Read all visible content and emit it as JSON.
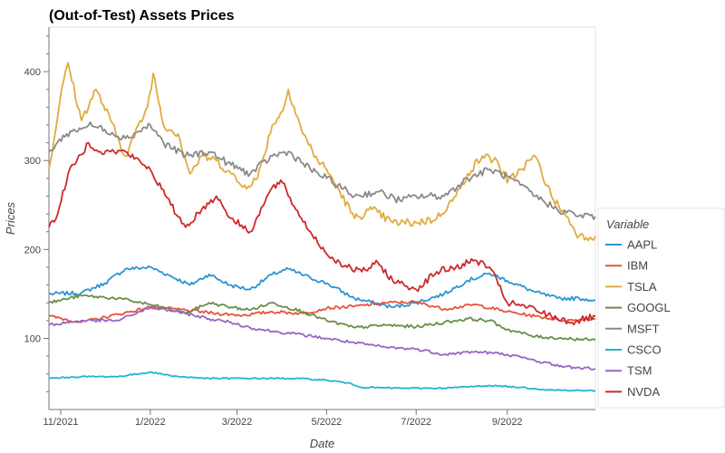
{
  "chart_data": {
    "type": "line",
    "title": "(Out-of-Test) Assets Prices",
    "xlabel": "Date",
    "ylabel": "Prices",
    "x_range": [
      "2021-10-24",
      "2022-10-31"
    ],
    "ylim": [
      20,
      450
    ],
    "y_ticks": [
      100,
      200,
      300,
      400
    ],
    "x_ticks": [
      {
        "date": "2021-11-01",
        "label": "11/2021"
      },
      {
        "date": "2022-01-01",
        "label": "1/2022"
      },
      {
        "date": "2022-03-01",
        "label": "3/2022"
      },
      {
        "date": "2022-05-01",
        "label": "5/2022"
      },
      {
        "date": "2022-07-01",
        "label": "7/2022"
      },
      {
        "date": "2022-09-01",
        "label": "9/2022"
      }
    ],
    "legend": {
      "title": "Variable",
      "position": "right"
    },
    "series": [
      {
        "name": "AAPL",
        "color": "#2b94d4",
        "points": [
          [
            "2021-10-24",
            150
          ],
          [
            "2021-11-15",
            151
          ],
          [
            "2021-12-01",
            162
          ],
          [
            "2021-12-15",
            178
          ],
          [
            "2022-01-01",
            180
          ],
          [
            "2022-01-15",
            170
          ],
          [
            "2022-01-28",
            160
          ],
          [
            "2022-02-10",
            172
          ],
          [
            "2022-02-24",
            160
          ],
          [
            "2022-03-10",
            155
          ],
          [
            "2022-03-25",
            172
          ],
          [
            "2022-04-05",
            178
          ],
          [
            "2022-04-20",
            168
          ],
          [
            "2022-05-01",
            162
          ],
          [
            "2022-05-20",
            145
          ],
          [
            "2022-06-15",
            135
          ],
          [
            "2022-07-01",
            140
          ],
          [
            "2022-07-20",
            150
          ],
          [
            "2022-08-05",
            165
          ],
          [
            "2022-08-20",
            173
          ],
          [
            "2022-09-01",
            165
          ],
          [
            "2022-09-20",
            152
          ],
          [
            "2022-10-05",
            145
          ],
          [
            "2022-10-20",
            145
          ],
          [
            "2022-10-31",
            143
          ]
        ]
      },
      {
        "name": "IBM",
        "color": "#e8533b",
        "points": [
          [
            "2021-10-24",
            125
          ],
          [
            "2021-11-15",
            118
          ],
          [
            "2021-12-10",
            127
          ],
          [
            "2022-01-01",
            135
          ],
          [
            "2022-01-25",
            132
          ],
          [
            "2022-02-15",
            128
          ],
          [
            "2022-03-05",
            126
          ],
          [
            "2022-03-25",
            130
          ],
          [
            "2022-04-15",
            128
          ],
          [
            "2022-05-01",
            134
          ],
          [
            "2022-05-20",
            136
          ],
          [
            "2022-06-10",
            140
          ],
          [
            "2022-07-01",
            141
          ],
          [
            "2022-07-20",
            133
          ],
          [
            "2022-08-10",
            138
          ],
          [
            "2022-09-01",
            130
          ],
          [
            "2022-09-20",
            125
          ],
          [
            "2022-10-10",
            120
          ],
          [
            "2022-10-31",
            122
          ]
        ]
      },
      {
        "name": "TSLA",
        "color": "#e1ab3e",
        "points": [
          [
            "2021-10-24",
            290
          ],
          [
            "2021-10-30",
            350
          ],
          [
            "2021-11-03",
            390
          ],
          [
            "2021-11-06",
            410
          ],
          [
            "2021-11-15",
            345
          ],
          [
            "2021-11-25",
            380
          ],
          [
            "2021-12-05",
            345
          ],
          [
            "2021-12-15",
            305
          ],
          [
            "2021-12-30",
            360
          ],
          [
            "2022-01-03",
            398
          ],
          [
            "2022-01-10",
            340
          ],
          [
            "2022-01-20",
            330
          ],
          [
            "2022-01-28",
            285
          ],
          [
            "2022-02-05",
            305
          ],
          [
            "2022-02-15",
            300
          ],
          [
            "2022-02-25",
            285
          ],
          [
            "2022-03-05",
            270
          ],
          [
            "2022-03-15",
            280
          ],
          [
            "2022-03-25",
            340
          ],
          [
            "2022-04-01",
            355
          ],
          [
            "2022-04-05",
            380
          ],
          [
            "2022-04-15",
            330
          ],
          [
            "2022-04-25",
            300
          ],
          [
            "2022-05-01",
            290
          ],
          [
            "2022-05-10",
            265
          ],
          [
            "2022-05-20",
            235
          ],
          [
            "2022-06-01",
            245
          ],
          [
            "2022-06-15",
            230
          ],
          [
            "2022-07-01",
            230
          ],
          [
            "2022-07-15",
            235
          ],
          [
            "2022-07-28",
            260
          ],
          [
            "2022-08-05",
            285
          ],
          [
            "2022-08-15",
            305
          ],
          [
            "2022-08-25",
            300
          ],
          [
            "2022-09-01",
            275
          ],
          [
            "2022-09-10",
            290
          ],
          [
            "2022-09-20",
            305
          ],
          [
            "2022-10-01",
            260
          ],
          [
            "2022-10-10",
            240
          ],
          [
            "2022-10-20",
            215
          ],
          [
            "2022-10-31",
            215
          ]
        ]
      },
      {
        "name": "GOOGL",
        "color": "#6b8d47",
        "points": [
          [
            "2021-10-24",
            140
          ],
          [
            "2021-11-15",
            148
          ],
          [
            "2021-12-10",
            145
          ],
          [
            "2022-01-01",
            138
          ],
          [
            "2022-01-25",
            128
          ],
          [
            "2022-02-10",
            140
          ],
          [
            "2022-02-25",
            135
          ],
          [
            "2022-03-10",
            132
          ],
          [
            "2022-03-25",
            140
          ],
          [
            "2022-04-15",
            130
          ],
          [
            "2022-05-01",
            120
          ],
          [
            "2022-05-20",
            112
          ],
          [
            "2022-06-10",
            115
          ],
          [
            "2022-07-01",
            113
          ],
          [
            "2022-07-20",
            118
          ],
          [
            "2022-08-05",
            122
          ],
          [
            "2022-08-20",
            120
          ],
          [
            "2022-09-01",
            110
          ],
          [
            "2022-09-20",
            102
          ],
          [
            "2022-10-10",
            100
          ],
          [
            "2022-10-31",
            98
          ]
        ]
      },
      {
        "name": "MSFT",
        "color": "#8a8a8a",
        "points": [
          [
            "2021-10-24",
            310
          ],
          [
            "2021-11-05",
            330
          ],
          [
            "2021-11-20",
            340
          ],
          [
            "2021-12-01",
            335
          ],
          [
            "2021-12-15",
            325
          ],
          [
            "2022-01-01",
            340
          ],
          [
            "2022-01-10",
            320
          ],
          [
            "2022-01-25",
            305
          ],
          [
            "2022-02-10",
            310
          ],
          [
            "2022-02-25",
            295
          ],
          [
            "2022-03-10",
            285
          ],
          [
            "2022-03-25",
            305
          ],
          [
            "2022-04-05",
            310
          ],
          [
            "2022-04-20",
            290
          ],
          [
            "2022-05-01",
            280
          ],
          [
            "2022-05-20",
            260
          ],
          [
            "2022-06-05",
            265
          ],
          [
            "2022-06-20",
            255
          ],
          [
            "2022-07-01",
            260
          ],
          [
            "2022-07-20",
            260
          ],
          [
            "2022-08-05",
            280
          ],
          [
            "2022-08-20",
            290
          ],
          [
            "2022-09-01",
            282
          ],
          [
            "2022-09-20",
            260
          ],
          [
            "2022-10-05",
            245
          ],
          [
            "2022-10-20",
            238
          ],
          [
            "2022-10-31",
            237
          ]
        ]
      },
      {
        "name": "CSCO",
        "color": "#21b6cf",
        "points": [
          [
            "2021-10-24",
            55
          ],
          [
            "2021-11-15",
            57
          ],
          [
            "2021-12-10",
            57
          ],
          [
            "2022-01-01",
            62
          ],
          [
            "2022-01-20",
            57
          ],
          [
            "2022-02-10",
            55
          ],
          [
            "2022-03-10",
            55
          ],
          [
            "2022-04-10",
            55
          ],
          [
            "2022-05-01",
            53
          ],
          [
            "2022-05-15",
            50
          ],
          [
            "2022-05-25",
            45
          ],
          [
            "2022-06-20",
            44
          ],
          [
            "2022-07-20",
            44
          ],
          [
            "2022-08-20",
            47
          ],
          [
            "2022-09-10",
            45
          ],
          [
            "2022-09-30",
            42
          ],
          [
            "2022-10-31",
            41
          ]
        ]
      },
      {
        "name": "TSM",
        "color": "#9468c3",
        "points": [
          [
            "2021-10-24",
            115
          ],
          [
            "2021-11-15",
            120
          ],
          [
            "2021-12-10",
            120
          ],
          [
            "2022-01-01",
            135
          ],
          [
            "2022-01-20",
            130
          ],
          [
            "2022-02-10",
            122
          ],
          [
            "2022-02-25",
            118
          ],
          [
            "2022-03-10",
            112
          ],
          [
            "2022-03-25",
            108
          ],
          [
            "2022-04-10",
            105
          ],
          [
            "2022-05-01",
            100
          ],
          [
            "2022-05-20",
            95
          ],
          [
            "2022-06-10",
            90
          ],
          [
            "2022-07-01",
            88
          ],
          [
            "2022-07-20",
            82
          ],
          [
            "2022-08-10",
            85
          ],
          [
            "2022-09-01",
            82
          ],
          [
            "2022-09-20",
            75
          ],
          [
            "2022-10-10",
            68
          ],
          [
            "2022-10-31",
            66
          ]
        ]
      },
      {
        "name": "NVDA",
        "color": "#cb2a2a",
        "points": [
          [
            "2021-10-24",
            225
          ],
          [
            "2021-10-30",
            240
          ],
          [
            "2021-11-06",
            285
          ],
          [
            "2021-11-12",
            300
          ],
          [
            "2021-11-20",
            320
          ],
          [
            "2021-11-28",
            310
          ],
          [
            "2021-12-05",
            310
          ],
          [
            "2021-12-15",
            310
          ],
          [
            "2022-01-01",
            290
          ],
          [
            "2022-01-15",
            250
          ],
          [
            "2022-01-25",
            225
          ],
          [
            "2022-02-05",
            245
          ],
          [
            "2022-02-15",
            260
          ],
          [
            "2022-02-25",
            235
          ],
          [
            "2022-03-10",
            220
          ],
          [
            "2022-03-25",
            270
          ],
          [
            "2022-04-01",
            275
          ],
          [
            "2022-04-10",
            245
          ],
          [
            "2022-04-20",
            220
          ],
          [
            "2022-05-01",
            195
          ],
          [
            "2022-05-15",
            180
          ],
          [
            "2022-05-25",
            175
          ],
          [
            "2022-06-05",
            185
          ],
          [
            "2022-06-15",
            165
          ],
          [
            "2022-07-01",
            155
          ],
          [
            "2022-07-15",
            175
          ],
          [
            "2022-07-28",
            180
          ],
          [
            "2022-08-10",
            188
          ],
          [
            "2022-08-20",
            180
          ],
          [
            "2022-09-01",
            140
          ],
          [
            "2022-09-15",
            135
          ],
          [
            "2022-10-01",
            125
          ],
          [
            "2022-10-15",
            118
          ],
          [
            "2022-10-31",
            125
          ]
        ]
      }
    ]
  }
}
